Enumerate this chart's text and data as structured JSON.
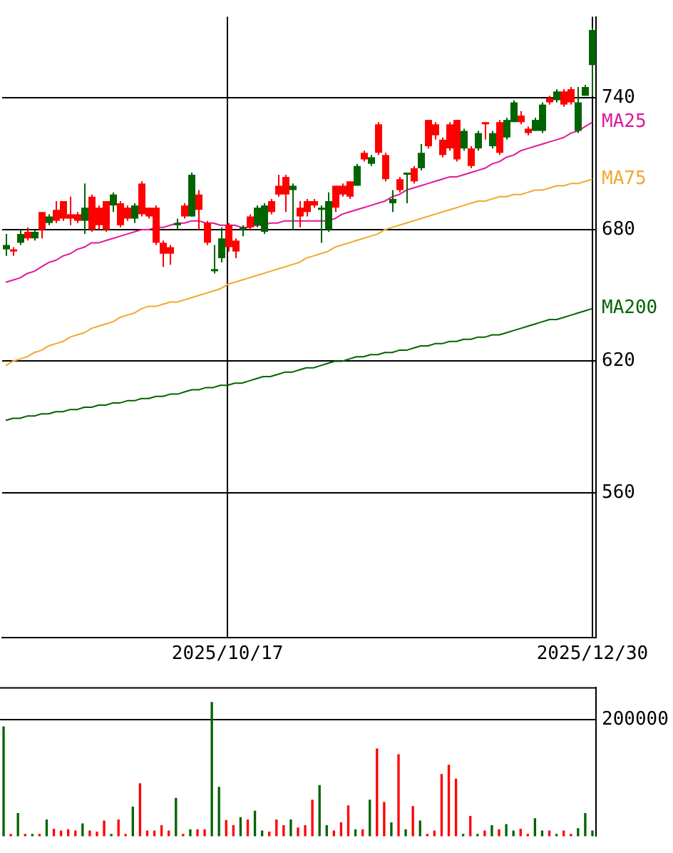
{
  "chart_data": [
    {
      "type": "candlestick",
      "categories": [
        null,
        null,
        null,
        null,
        null,
        null,
        null,
        null,
        null,
        null,
        null,
        null,
        null,
        null,
        null,
        null,
        null,
        null,
        null,
        null,
        null,
        null,
        null,
        null,
        null,
        null,
        null,
        null,
        null,
        null,
        null,
        "2025/10/17",
        null,
        null,
        null,
        null,
        null,
        null,
        null,
        null,
        null,
        null,
        null,
        null,
        null,
        null,
        null,
        null,
        null,
        null,
        null,
        null,
        null,
        null,
        null,
        null,
        null,
        null,
        null,
        null,
        null,
        null,
        null,
        null,
        null,
        null,
        null,
        null,
        null,
        null,
        null,
        null,
        null,
        null,
        null,
        null,
        null,
        null,
        null,
        null,
        null,
        null,
        "2025/12/30"
      ],
      "ohlc": [
        [
          673,
          678,
          668,
          671
        ],
        [
          670,
          672,
          668,
          671
        ],
        [
          678,
          680,
          673,
          674
        ],
        [
          676,
          681,
          675,
          679
        ],
        [
          679,
          680,
          675,
          676
        ],
        [
          680,
          688,
          676,
          688
        ],
        [
          686,
          687,
          682,
          683
        ],
        [
          684,
          693,
          683,
          689
        ],
        [
          685,
          693,
          684,
          693
        ],
        [
          685,
          695,
          682,
          687
        ],
        [
          684,
          688,
          683,
          687
        ],
        [
          690,
          701,
          678,
          684
        ],
        [
          680,
          696,
          679,
          695
        ],
        [
          682,
          691,
          680,
          690
        ],
        [
          680,
          693,
          679,
          693
        ],
        [
          696,
          697,
          688,
          691
        ],
        [
          682,
          693,
          681,
          692
        ],
        [
          685,
          691,
          684,
          690
        ],
        [
          691,
          692,
          683,
          685
        ],
        [
          687,
          702,
          686,
          701
        ],
        [
          686,
          690,
          685,
          690
        ],
        [
          674,
          691,
          673,
          690
        ],
        [
          669,
          675,
          663,
          674
        ],
        [
          669,
          673,
          664,
          672
        ],
        [
          683,
          685,
          680,
          682
        ],
        [
          686,
          692,
          685,
          691
        ],
        [
          705,
          706,
          686,
          686
        ],
        [
          689,
          698,
          680,
          696
        ],
        [
          674,
          684,
          673,
          683
        ],
        [
          662,
          673,
          660,
          661
        ],
        [
          676,
          681,
          665,
          667
        ],
        [
          672,
          683,
          670,
          682
        ],
        [
          670,
          676,
          667,
          675
        ],
        [
          681,
          682,
          677,
          680
        ],
        [
          681,
          687,
          680,
          686
        ],
        [
          690,
          691,
          681,
          682
        ],
        [
          691,
          692,
          678,
          679
        ],
        [
          688,
          694,
          687,
          693
        ],
        [
          696,
          705,
          695,
          700
        ],
        [
          696,
          705,
          688,
          704
        ],
        [
          700,
          701,
          680,
          698
        ],
        [
          686,
          693,
          681,
          690
        ],
        [
          688,
          694,
          686,
          693
        ],
        [
          691,
          694,
          690,
          693
        ],
        [
          690,
          691,
          674,
          689
        ],
        [
          693,
          697,
          679,
          680
        ],
        [
          690,
          700,
          688,
          700
        ],
        [
          696,
          701,
          695,
          700
        ],
        [
          695,
          702,
          694,
          702
        ],
        [
          709,
          710,
          700,
          700
        ],
        [
          712,
          716,
          711,
          715
        ],
        [
          713,
          714,
          709,
          710
        ],
        [
          715,
          729,
          714,
          728
        ],
        [
          703,
          715,
          702,
          714
        ],
        [
          694,
          698,
          688,
          692
        ],
        [
          698,
          704,
          697,
          703
        ],
        [
          706,
          706,
          692,
          705
        ],
        [
          702,
          709,
          701,
          708
        ],
        [
          715,
          719,
          707,
          708
        ],
        [
          718,
          730,
          717,
          730
        ],
        [
          723,
          729,
          721,
          728
        ],
        [
          714,
          722,
          713,
          721
        ],
        [
          717,
          729,
          716,
          728
        ],
        [
          712,
          730,
          711,
          730
        ],
        [
          725,
          726,
          716,
          717
        ],
        [
          709,
          718,
          708,
          717
        ],
        [
          724,
          725,
          716,
          717
        ],
        [
          728,
          729,
          721,
          729
        ],
        [
          724,
          725,
          717,
          718
        ],
        [
          715,
          730,
          714,
          729
        ],
        [
          730,
          731,
          721,
          722
        ],
        [
          738,
          739,
          729,
          729
        ],
        [
          729,
          734,
          728,
          732
        ],
        [
          724,
          727,
          723,
          726
        ],
        [
          730,
          731,
          725,
          725
        ],
        [
          737,
          738,
          724,
          725
        ],
        [
          738,
          741,
          737,
          740
        ],
        [
          743,
          744,
          738,
          739
        ],
        [
          737,
          744,
          736,
          743
        ],
        [
          738,
          745,
          737,
          744
        ],
        [
          738,
          745,
          724,
          725
        ],
        [
          745,
          746,
          741,
          741
        ],
        [
          771,
          772,
          741,
          755
        ]
      ],
      "colors": [
        "#006400",
        "#ff0000",
        "#006400",
        "#ff0000",
        "#006400",
        "#ff0000",
        "#006400",
        "#ff0000",
        "#ff0000",
        "#ff0000",
        "#ff0000",
        "#006400",
        "#ff0000",
        "#ff0000",
        "#ff0000",
        "#006400",
        "#ff0000",
        "#ff0000",
        "#006400",
        "#ff0000",
        "#ff0000",
        "#ff0000",
        "#ff0000",
        "#ff0000",
        "#006400",
        "#ff0000",
        "#006400",
        "#ff0000",
        "#ff0000",
        "#006400",
        "#006400",
        "#ff0000",
        "#ff0000",
        "#006400",
        "#ff0000",
        "#006400",
        "#006400",
        "#ff0000",
        "#ff0000",
        "#ff0000",
        "#006400",
        "#ff0000",
        "#ff0000",
        "#ff0000",
        "#006400",
        "#006400",
        "#ff0000",
        "#ff0000",
        "#ff0000",
        "#006400",
        "#ff0000",
        "#006400",
        "#ff0000",
        "#ff0000",
        "#006400",
        "#ff0000",
        "#006400",
        "#ff0000",
        "#006400",
        "#ff0000",
        "#ff0000",
        "#ff0000",
        "#ff0000",
        "#ff0000",
        "#006400",
        "#ff0000",
        "#006400",
        "#ff0000",
        "#006400",
        "#ff0000",
        "#006400",
        "#006400",
        "#ff0000",
        "#ff0000",
        "#006400",
        "#006400",
        "#ff0000",
        "#006400",
        "#ff0000",
        "#ff0000",
        "#006400",
        "#006400",
        "#006400"
      ],
      "series": [
        {
          "name": "MA25",
          "type": "line",
          "color": "#e0189a",
          "values": [
            656,
            657,
            658,
            660,
            661,
            663,
            665,
            666,
            668,
            669,
            671,
            672,
            674,
            674,
            675,
            676,
            677,
            678,
            679,
            680,
            680,
            681,
            681,
            682,
            683,
            683,
            684,
            684,
            683,
            683,
            682,
            682,
            682,
            681,
            681,
            682,
            682,
            683,
            683,
            684,
            684,
            684,
            684,
            684,
            684,
            684,
            685,
            687,
            688,
            689,
            690,
            691,
            692,
            693,
            695,
            696,
            698,
            699,
            700,
            701,
            702,
            703,
            704,
            704,
            705,
            706,
            707,
            708,
            710,
            711,
            713,
            714,
            716,
            717,
            718,
            719,
            720,
            721,
            722,
            724,
            725,
            727,
            729
          ]
        },
        {
          "name": "MA75",
          "type": "line",
          "color": "#f0a830",
          "values": [
            618,
            620,
            621,
            622,
            624,
            625,
            627,
            628,
            629,
            631,
            632,
            633,
            635,
            636,
            637,
            638,
            640,
            641,
            642,
            644,
            645,
            645,
            646,
            647,
            647,
            648,
            649,
            650,
            651,
            652,
            653,
            655,
            656,
            657,
            658,
            659,
            660,
            661,
            662,
            663,
            664,
            665,
            667,
            668,
            669,
            670,
            672,
            673,
            674,
            675,
            676,
            677,
            678,
            680,
            681,
            682,
            683,
            684,
            685,
            686,
            687,
            688,
            689,
            690,
            691,
            692,
            693,
            693,
            694,
            695,
            695,
            696,
            696,
            697,
            698,
            698,
            699,
            700,
            700,
            701,
            701,
            702,
            703
          ]
        },
        {
          "name": "MA200",
          "type": "line",
          "color": "#006400",
          "values": [
            593,
            594,
            594,
            595,
            595,
            596,
            596,
            597,
            597,
            598,
            598,
            599,
            599,
            600,
            600,
            601,
            601,
            602,
            602,
            603,
            603,
            604,
            604,
            605,
            605,
            606,
            607,
            607,
            608,
            608,
            609,
            609,
            610,
            610,
            611,
            612,
            613,
            613,
            614,
            615,
            615,
            616,
            617,
            617,
            618,
            619,
            620,
            620,
            621,
            622,
            622,
            623,
            623,
            624,
            624,
            625,
            625,
            626,
            627,
            627,
            628,
            628,
            629,
            629,
            630,
            630,
            631,
            631,
            632,
            632,
            633,
            634,
            635,
            636,
            637,
            638,
            639,
            639,
            640,
            641,
            642,
            643,
            644
          ]
        }
      ],
      "ylim": [
        494,
        777
      ],
      "yticks": [
        560,
        620,
        680,
        740
      ],
      "grid": true
    },
    {
      "type": "bar",
      "categories": [
        null,
        null,
        null,
        null,
        null,
        null,
        null,
        null,
        null,
        null,
        null,
        null,
        null,
        null,
        null,
        null,
        null,
        null,
        null,
        null,
        null,
        null,
        null,
        null,
        null,
        null,
        null,
        null,
        null,
        null,
        null,
        null,
        null,
        null,
        null,
        null,
        null,
        null,
        null,
        null,
        null,
        null,
        null,
        null,
        null,
        null,
        null,
        null,
        null,
        null,
        null,
        null,
        null,
        null,
        null,
        null,
        null,
        null,
        null,
        null,
        null,
        null,
        null,
        null,
        null,
        null,
        null,
        null,
        null,
        null,
        null,
        null,
        null,
        null,
        null,
        null,
        null,
        null,
        null,
        null,
        null,
        null,
        null
      ],
      "values": [
        188000,
        3000,
        39000,
        3000,
        3000,
        3000,
        28000,
        12000,
        9000,
        11000,
        9000,
        21000,
        9000,
        7000,
        26000,
        3000,
        28000,
        3000,
        50000,
        90000,
        9000,
        9000,
        18000,
        9000,
        65000,
        3000,
        11000,
        11000,
        11000,
        230000,
        84000,
        27000,
        18000,
        32000,
        28000,
        43000,
        9000,
        7000,
        28000,
        18000,
        28000,
        14000,
        18000,
        62000,
        87000,
        18000,
        9000,
        23000,
        52000,
        11000,
        11000,
        62000,
        150000,
        58000,
        23000,
        140000,
        11000,
        51000,
        26000,
        3000,
        9000,
        106000,
        122000,
        98000,
        3000,
        34000,
        3000,
        9000,
        18000,
        11000,
        20000,
        9000,
        12000,
        3000,
        30000,
        9000,
        9000,
        3000,
        9000,
        3000,
        13000,
        39000,
        9000
      ],
      "colors": [
        "#006400",
        "#ff0000",
        "#006400",
        "#ff0000",
        "#006400",
        "#ff0000",
        "#006400",
        "#ff0000",
        "#ff0000",
        "#ff0000",
        "#ff0000",
        "#006400",
        "#ff0000",
        "#ff0000",
        "#ff0000",
        "#006400",
        "#ff0000",
        "#ff0000",
        "#006400",
        "#ff0000",
        "#ff0000",
        "#ff0000",
        "#ff0000",
        "#ff0000",
        "#006400",
        "#ff0000",
        "#006400",
        "#ff0000",
        "#ff0000",
        "#006400",
        "#006400",
        "#ff0000",
        "#ff0000",
        "#006400",
        "#ff0000",
        "#006400",
        "#006400",
        "#ff0000",
        "#ff0000",
        "#ff0000",
        "#006400",
        "#ff0000",
        "#ff0000",
        "#ff0000",
        "#006400",
        "#006400",
        "#ff0000",
        "#ff0000",
        "#ff0000",
        "#006400",
        "#ff0000",
        "#006400",
        "#ff0000",
        "#ff0000",
        "#006400",
        "#ff0000",
        "#006400",
        "#ff0000",
        "#006400",
        "#ff0000",
        "#ff0000",
        "#ff0000",
        "#ff0000",
        "#ff0000",
        "#006400",
        "#ff0000",
        "#006400",
        "#ff0000",
        "#006400",
        "#ff0000",
        "#006400",
        "#006400",
        "#ff0000",
        "#ff0000",
        "#006400",
        "#006400",
        "#ff0000",
        "#006400",
        "#ff0000",
        "#ff0000",
        "#006400",
        "#006400",
        "#006400"
      ],
      "ylim": [
        0,
        256000
      ],
      "yticks": [
        200000
      ],
      "grid": "y",
      "tick_labels": "y"
    }
  ]
}
